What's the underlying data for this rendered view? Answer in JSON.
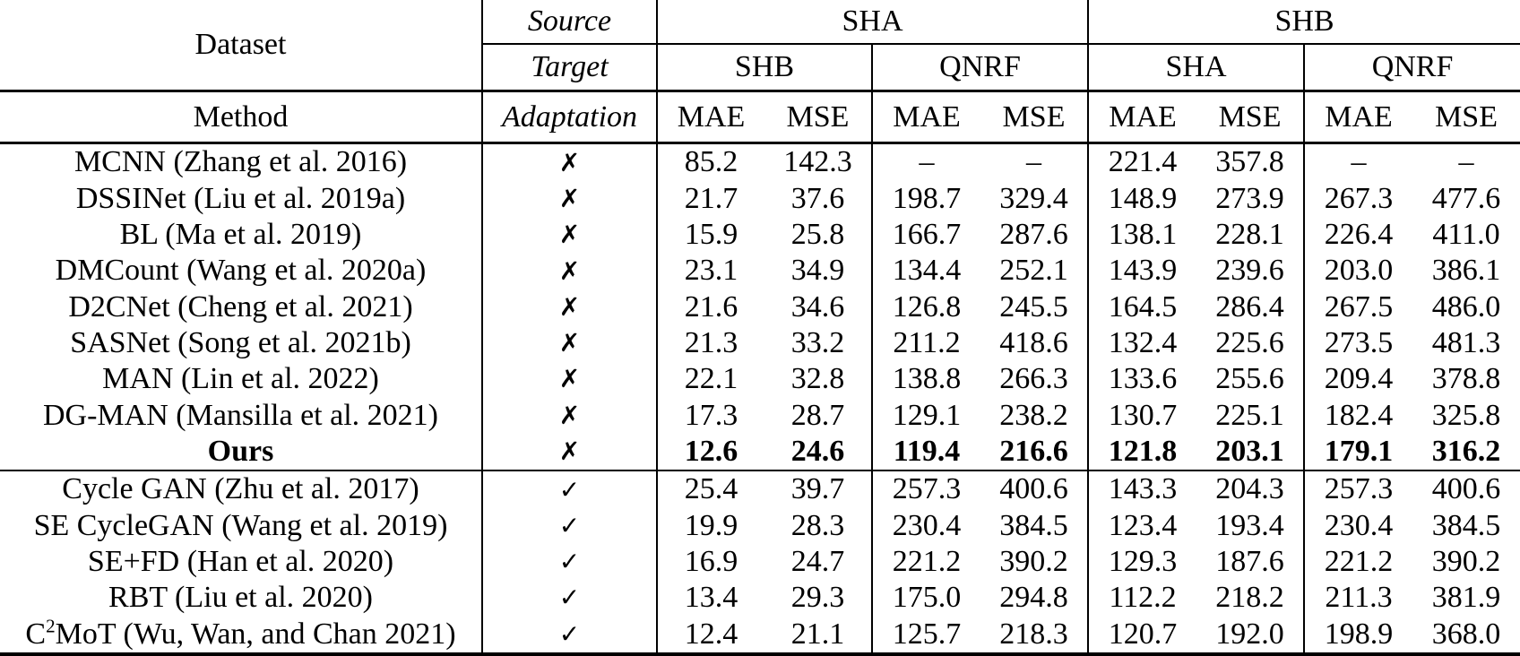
{
  "table": {
    "header": {
      "dataset_label": "Dataset",
      "method_label": "Method",
      "source_label": "Source",
      "target_label": "Target",
      "adaptation_label": "Adaptation",
      "source_datasets": [
        "SHA",
        "SHB"
      ],
      "target_datasets": [
        "SHB",
        "QNRF",
        "SHA",
        "QNRF"
      ],
      "metric_labels": [
        "MAE",
        "MSE"
      ]
    },
    "symbols": {
      "no_adaptation": "✗",
      "with_adaptation": "✓",
      "missing_value": "–"
    },
    "groups": [
      {
        "adaptation": "✗",
        "rows": [
          {
            "method": "MCNN (Zhang et al. 2016)",
            "values": [
              "85.2",
              "142.3",
              "–",
              "–",
              "221.4",
              "357.8",
              "–",
              "–"
            ]
          },
          {
            "method": "DSSINet (Liu et al. 2019a)",
            "values": [
              "21.7",
              "37.6",
              "198.7",
              "329.4",
              "148.9",
              "273.9",
              "267.3",
              "477.6"
            ]
          },
          {
            "method": "BL (Ma et al. 2019)",
            "values": [
              "15.9",
              "25.8",
              "166.7",
              "287.6",
              "138.1",
              "228.1",
              "226.4",
              "411.0"
            ]
          },
          {
            "method": "DMCount (Wang et al. 2020a)",
            "values": [
              "23.1",
              "34.9",
              "134.4",
              "252.1",
              "143.9",
              "239.6",
              "203.0",
              "386.1"
            ]
          },
          {
            "method": "D2CNet (Cheng et al. 2021)",
            "values": [
              "21.6",
              "34.6",
              "126.8",
              "245.5",
              "164.5",
              "286.4",
              "267.5",
              "486.0"
            ]
          },
          {
            "method": "SASNet (Song et al. 2021b)",
            "values": [
              "21.3",
              "33.2",
              "211.2",
              "418.6",
              "132.4",
              "225.6",
              "273.5",
              "481.3"
            ]
          },
          {
            "method": "MAN (Lin et al. 2022)",
            "values": [
              "22.1",
              "32.8",
              "138.8",
              "266.3",
              "133.6",
              "255.6",
              "209.4",
              "378.8"
            ]
          },
          {
            "method": "DG-MAN (Mansilla et al. 2021)",
            "values": [
              "17.3",
              "28.7",
              "129.1",
              "238.2",
              "130.7",
              "225.1",
              "182.4",
              "325.8"
            ]
          },
          {
            "method": "Ours",
            "method_bold": true,
            "values": [
              "12.6",
              "24.6",
              "119.4",
              "216.6",
              "121.8",
              "203.1",
              "179.1",
              "316.2"
            ],
            "marks": [
              "b",
              "b",
              "b",
              "b",
              "b",
              "b",
              "b",
              "b"
            ]
          }
        ]
      },
      {
        "adaptation": "✓",
        "rows": [
          {
            "method": "Cycle GAN (Zhu et al. 2017)",
            "values": [
              "25.4",
              "39.7",
              "257.3",
              "400.6",
              "143.3",
              "204.3",
              "257.3",
              "400.6"
            ]
          },
          {
            "method": "SE CycleGAN (Wang et al. 2019)",
            "values": [
              "19.9",
              "28.3",
              "230.4",
              "384.5",
              "123.4",
              "193.4",
              "230.4",
              "384.5"
            ]
          },
          {
            "method": "SE+FD (Han et al. 2020)",
            "values": [
              "16.9",
              "24.7",
              "221.2",
              "390.2",
              "129.3",
              "187.6",
              "221.2",
              "390.2"
            ],
            "marks": [
              "",
              "",
              "",
              "",
              "",
              "u",
              "",
              ""
            ]
          },
          {
            "method": "RBT (Liu et al. 2020)",
            "values": [
              "13.4",
              "29.3",
              "175.0",
              "294.8",
              "112.2",
              "218.2",
              "211.3",
              "381.9"
            ],
            "marks": [
              "",
              "",
              "",
              "",
              "u",
              "",
              "",
              ""
            ]
          },
          {
            "method_pre": "C",
            "method_sup": "2",
            "method_post": "MoT (Wu, Wan, and Chan 2021)",
            "values": [
              "12.4",
              "21.1",
              "125.7",
              "218.3",
              "120.7",
              "192.0",
              "198.9",
              "368.0"
            ],
            "marks": [
              "u",
              "u",
              "u",
              "u",
              "",
              "",
              "u",
              "u"
            ]
          }
        ]
      }
    ]
  }
}
